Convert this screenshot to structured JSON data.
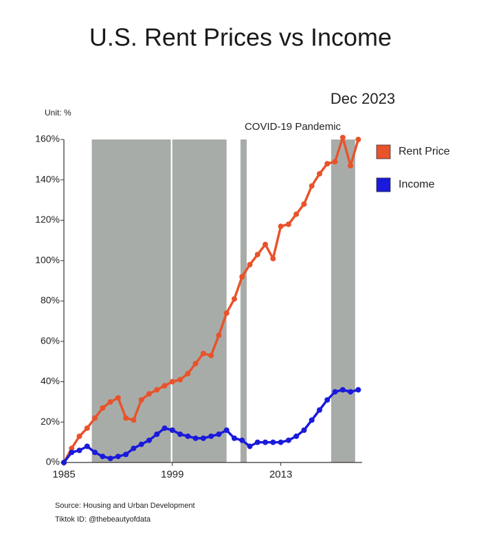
{
  "chart_data": {
    "type": "line",
    "title": "U.S. Rent Prices vs Income",
    "unit_label": "Unit: %",
    "annotations": [
      "Dec 2023",
      "COVID-19 Pandemic"
    ],
    "source": "Source: Housing and Urban Development",
    "credit": "Tiktok ID: @thebeautyofdata",
    "x": [
      1985,
      1986,
      1987,
      1988,
      1989,
      1990,
      1991,
      1992,
      1993,
      1994,
      1995,
      1996,
      1997,
      1998,
      1999,
      2000,
      2001,
      2002,
      2003,
      2004,
      2005,
      2006,
      2007,
      2008,
      2009,
      2010,
      2011,
      2012,
      2013,
      2014,
      2015,
      2016,
      2017,
      2018,
      2019,
      2020,
      2021,
      2022,
      2023
    ],
    "series": [
      {
        "name": "Rent Price",
        "color": "#e8532b",
        "values": [
          0,
          7,
          13,
          17,
          22,
          27,
          30,
          32,
          22,
          21,
          31,
          34,
          36,
          38,
          40,
          41,
          44,
          49,
          54,
          53,
          63,
          74,
          81,
          92,
          98,
          103,
          108,
          101,
          117,
          118,
          123,
          128,
          137,
          143,
          148,
          149,
          161,
          147,
          160
        ]
      },
      {
        "name": "Income",
        "color": "#1a1adb",
        "values": [
          0,
          5,
          6,
          8,
          5,
          3,
          2,
          3,
          4,
          7,
          9,
          11,
          14,
          17,
          16,
          14,
          13,
          12,
          12,
          13,
          14,
          16,
          12,
          11,
          8,
          10,
          10,
          10,
          10,
          11,
          13,
          16,
          21,
          26,
          31,
          35,
          36,
          35,
          36
        ]
      }
    ],
    "shaded_x_ranges": [
      [
        1988.6,
        1998.8
      ],
      [
        1999,
        2006
      ],
      [
        2007.8,
        2008.6
      ],
      [
        2019.5,
        2022.6
      ]
    ],
    "shade_color": "#a8aca8",
    "xlim": [
      1985,
      2023.5
    ],
    "xticks": [
      1985,
      1999,
      2013
    ],
    "ylim": [
      0,
      160
    ],
    "yticks": [
      {
        "value": 0,
        "label": "0%"
      },
      {
        "value": 20,
        "label": "20%"
      },
      {
        "value": 40,
        "label": "40%"
      },
      {
        "value": 60,
        "label": "60%"
      },
      {
        "value": 80,
        "label": "80%"
      },
      {
        "value": 100,
        "label": "100%"
      },
      {
        "value": 120,
        "label": "120%"
      },
      {
        "value": 140,
        "label": "140%"
      },
      {
        "value": 160,
        "label": "160%"
      }
    ],
    "legend": "top-right"
  }
}
